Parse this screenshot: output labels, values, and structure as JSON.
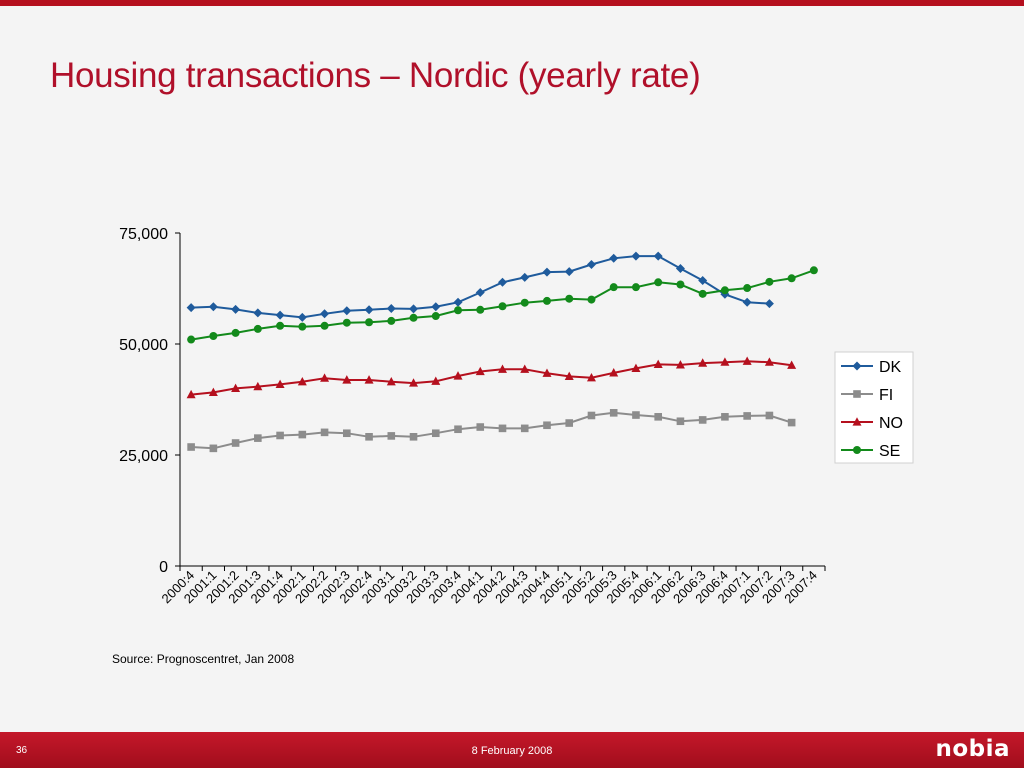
{
  "slide": {
    "title": "Housing transactions – Nordic (yearly rate)",
    "source": "Source: Prognoscentret, Jan 2008",
    "page_number": "36",
    "date": "8 February 2008",
    "logo_text": "nobia",
    "brand_color": "#b5101e"
  },
  "chart_data": {
    "type": "line",
    "title": "",
    "xlabel": "",
    "ylabel": "",
    "ylim": [
      0,
      75000
    ],
    "yticks": [
      0,
      25000,
      50000,
      75000
    ],
    "ytick_labels": [
      "0",
      "25,000",
      "50,000",
      "75,000"
    ],
    "grid": false,
    "legend_position": "right",
    "categories": [
      "2000:4",
      "2001:1",
      "2001:2",
      "2001:3",
      "2001:4",
      "2002:1",
      "2002:2",
      "2002:3",
      "2002:4",
      "2003:1",
      "2003:2",
      "2003:3",
      "2003:4",
      "2004:1",
      "2004:2",
      "2004:3",
      "2004:4",
      "2005:1",
      "2005:2",
      "2005:3",
      "2005:4",
      "2006:1",
      "2006:2",
      "2006:3",
      "2006:4",
      "2007:1",
      "2007:2",
      "2007:3",
      "2007:4"
    ],
    "series": [
      {
        "name": "DK",
        "color": "#1f5b9c",
        "marker": "diamond",
        "values": [
          58200,
          58400,
          57800,
          57000,
          56500,
          56000,
          56800,
          57500,
          57700,
          58000,
          57900,
          58400,
          59400,
          61600,
          63900,
          65000,
          66200,
          66300,
          67900,
          69300,
          69800,
          69800,
          67000,
          64300,
          61200,
          59400,
          59100,
          null,
          null
        ]
      },
      {
        "name": "FI",
        "color": "#8c8c8c",
        "marker": "square",
        "values": [
          26800,
          26500,
          27700,
          28800,
          29400,
          29600,
          30100,
          29900,
          29100,
          29300,
          29100,
          29900,
          30800,
          31300,
          31000,
          31000,
          31700,
          32200,
          33900,
          34500,
          34000,
          33600,
          32600,
          32900,
          33600,
          33800,
          33900,
          32300,
          null
        ]
      },
      {
        "name": "NO",
        "color": "#b5101e",
        "marker": "triangle",
        "values": [
          38600,
          39100,
          40000,
          40400,
          40900,
          41500,
          42300,
          41900,
          41900,
          41500,
          41200,
          41600,
          42800,
          43800,
          44300,
          44300,
          43400,
          42700,
          42400,
          43500,
          44500,
          45400,
          45300,
          45700,
          45900,
          46100,
          45900,
          45200,
          null
        ]
      },
      {
        "name": "SE",
        "color": "#138a1b",
        "marker": "circle",
        "values": [
          51000,
          51800,
          52500,
          53400,
          54100,
          53900,
          54100,
          54800,
          54900,
          55200,
          55900,
          56300,
          57600,
          57700,
          58500,
          59300,
          59700,
          60200,
          60000,
          62800,
          62800,
          63900,
          63400,
          61300,
          62100,
          62600,
          64000,
          64800,
          66600
        ]
      }
    ]
  }
}
